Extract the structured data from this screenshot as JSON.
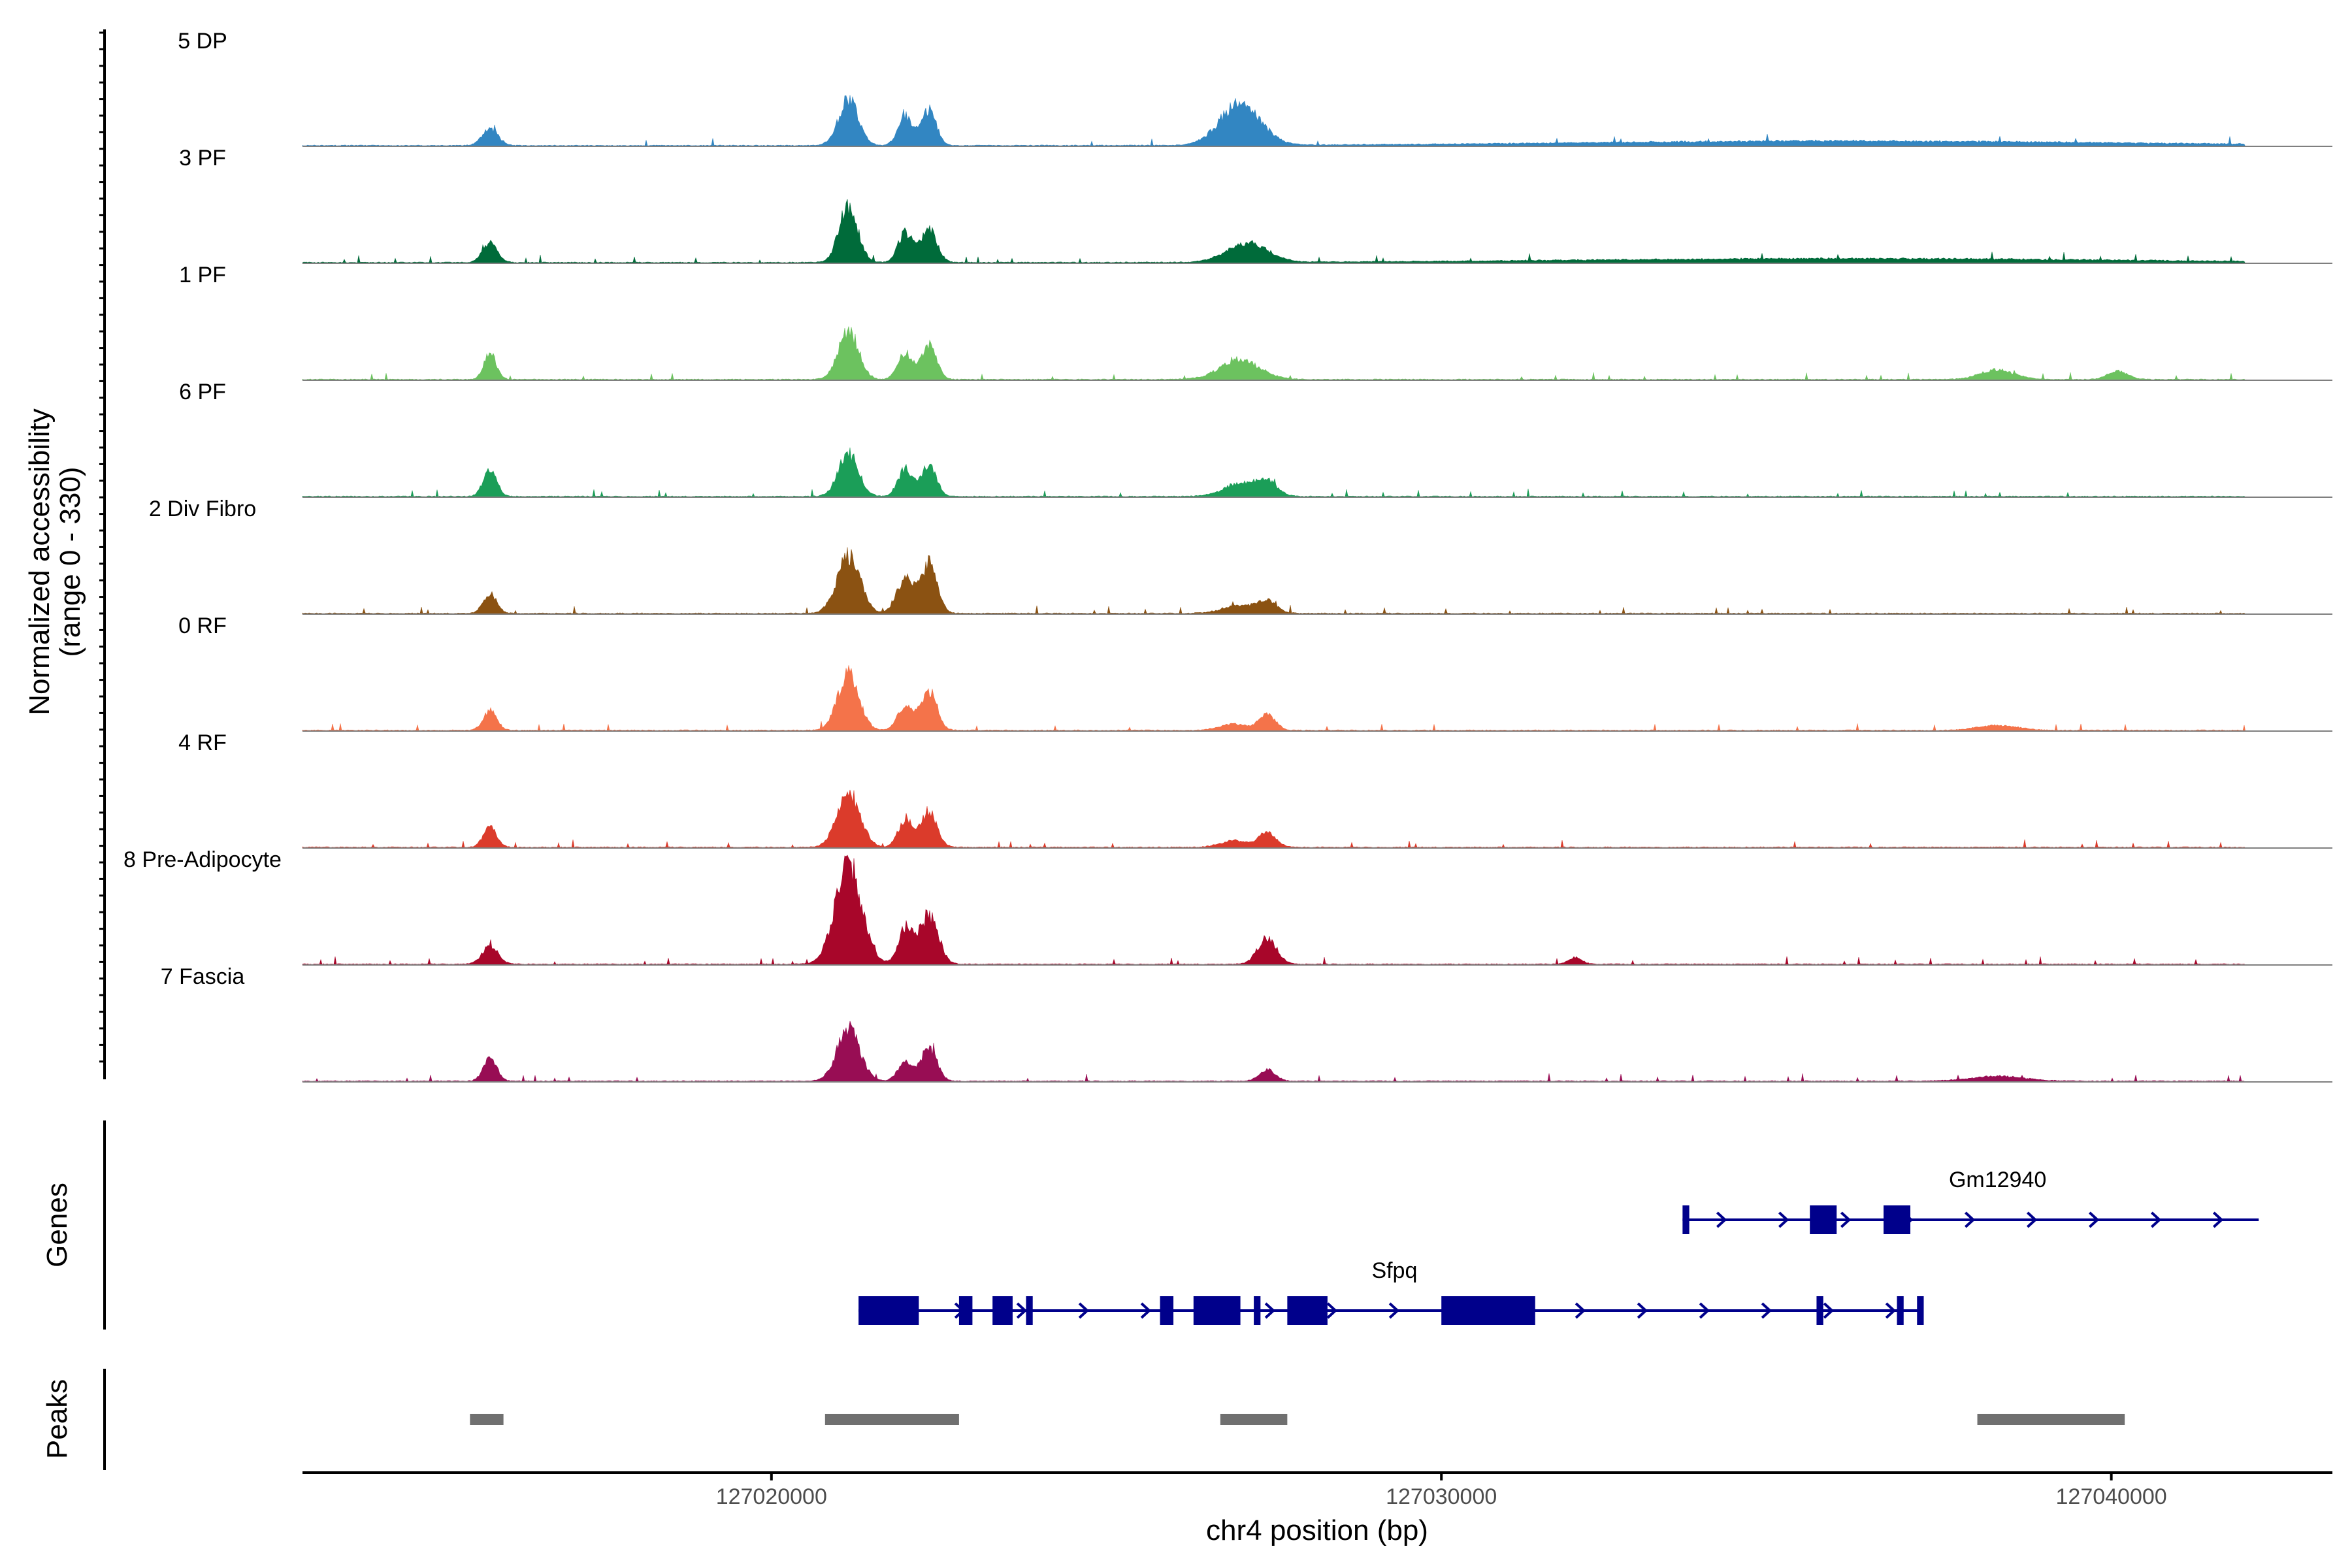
{
  "chart_data": {
    "type": "area",
    "title": "",
    "ylabel": "Normalized accessibility",
    "ylabel_range": "(range 0 - 330)",
    "xlabel": "chr4 position (bp)",
    "xlim": [
      127013000,
      127043300
    ],
    "x_ticks": [
      127020000,
      127030000,
      127040000
    ],
    "x_tick_labels": [
      "127020000",
      "127030000",
      "127040000"
    ],
    "y_range": [
      0,
      330
    ],
    "coverage_range": [
      127013000,
      127042000
    ],
    "tracks": [
      {
        "name": "5 DP",
        "color": "#3286C2",
        "peaks": [
          [
            127015800,
            50,
            120
          ],
          [
            127021150,
            140,
            150
          ],
          [
            127022000,
            90,
            110
          ],
          [
            127022350,
            110,
            110
          ],
          [
            127027000,
            130,
            300
          ],
          [
            127036000,
            14,
            4000
          ]
        ]
      },
      {
        "name": "3 PF",
        "color": "#006B3A",
        "peaks": [
          [
            127015800,
            60,
            110
          ],
          [
            127021150,
            170,
            140
          ],
          [
            127022000,
            90,
            110
          ],
          [
            127022350,
            100,
            120
          ],
          [
            127027100,
            60,
            300
          ],
          [
            127036000,
            12,
            4000
          ]
        ]
      },
      {
        "name": "1 PF",
        "color": "#6CC25F",
        "peaks": [
          [
            127015800,
            85,
            90
          ],
          [
            127021150,
            150,
            150
          ],
          [
            127022000,
            80,
            110
          ],
          [
            127022350,
            110,
            110
          ],
          [
            127027000,
            60,
            300
          ],
          [
            127038300,
            30,
            250
          ],
          [
            127040100,
            25,
            150
          ]
        ]
      },
      {
        "name": "6 PF",
        "color": "#1B9E58",
        "peaks": [
          [
            127015800,
            80,
            100
          ],
          [
            127021150,
            130,
            150
          ],
          [
            127022000,
            85,
            110
          ],
          [
            127022350,
            100,
            110
          ],
          [
            127027000,
            40,
            250
          ],
          [
            127027400,
            40,
            150
          ]
        ]
      },
      {
        "name": "2 Div Fibro",
        "color": "#8B5212",
        "peaks": [
          [
            127015800,
            60,
            100
          ],
          [
            127021150,
            180,
            170
          ],
          [
            127022000,
            110,
            130
          ],
          [
            127022350,
            150,
            120
          ],
          [
            127027000,
            25,
            250
          ],
          [
            127027400,
            35,
            140
          ]
        ]
      },
      {
        "name": "0 RF",
        "color": "#F4734A",
        "peaks": [
          [
            127015800,
            60,
            100
          ],
          [
            127021150,
            170,
            160
          ],
          [
            127022000,
            80,
            110
          ],
          [
            127022350,
            120,
            120
          ],
          [
            127026900,
            20,
            200
          ],
          [
            127027400,
            50,
            120
          ],
          [
            127038300,
            15,
            300
          ]
        ]
      },
      {
        "name": "4 RF",
        "color": "#DB3B2B",
        "peaks": [
          [
            127015800,
            60,
            100
          ],
          [
            127021150,
            170,
            170
          ],
          [
            127022000,
            80,
            110
          ],
          [
            127022350,
            110,
            120
          ],
          [
            127026900,
            20,
            200
          ],
          [
            127027400,
            45,
            130
          ]
        ]
      },
      {
        "name": "8 Pre-Adipocyte",
        "color": "#A8062A",
        "peaks": [
          [
            127015800,
            55,
            120
          ],
          [
            127021150,
            300,
            200
          ],
          [
            127022000,
            110,
            110
          ],
          [
            127022350,
            150,
            140
          ],
          [
            127027400,
            80,
            140
          ],
          [
            127032000,
            20,
            100
          ]
        ]
      },
      {
        "name": "7 Fascia",
        "color": "#980D54",
        "peaks": [
          [
            127015800,
            70,
            100
          ],
          [
            127021150,
            160,
            170
          ],
          [
            127022000,
            60,
            110
          ],
          [
            127022350,
            100,
            120
          ],
          [
            127027400,
            35,
            120
          ],
          [
            127038300,
            15,
            400
          ]
        ]
      }
    ],
    "genes": [
      {
        "name": "Gm12940",
        "strand": "+",
        "start": 127033600,
        "end": 127042200,
        "label_pos": 127036600,
        "exons": [
          [
            127033600,
            127033700
          ],
          [
            127035500,
            127035900
          ],
          [
            127036600,
            127037000
          ]
        ]
      },
      {
        "name": "Sfpq",
        "strand": "+",
        "start": 127021300,
        "end": 127037200,
        "label_pos": 127029300,
        "exons": [
          [
            127021300,
            127022200
          ],
          [
            127022800,
            127023000
          ],
          [
            127023300,
            127023600
          ],
          [
            127023800,
            127023900
          ],
          [
            127025800,
            127026000
          ],
          [
            127026300,
            127027000
          ],
          [
            127027200,
            127027300
          ],
          [
            127027700,
            127028300
          ],
          [
            127030000,
            127031400
          ],
          [
            127035600,
            127035700
          ],
          [
            127036800,
            127036900
          ],
          [
            127037100,
            127037200
          ]
        ]
      }
    ],
    "peak_regions": [
      [
        127015500,
        127016000
      ],
      [
        127020800,
        127022800
      ],
      [
        127026700,
        127027700
      ],
      [
        127038000,
        127040200
      ]
    ],
    "side_titles": [
      "Genes",
      "Peaks"
    ]
  }
}
